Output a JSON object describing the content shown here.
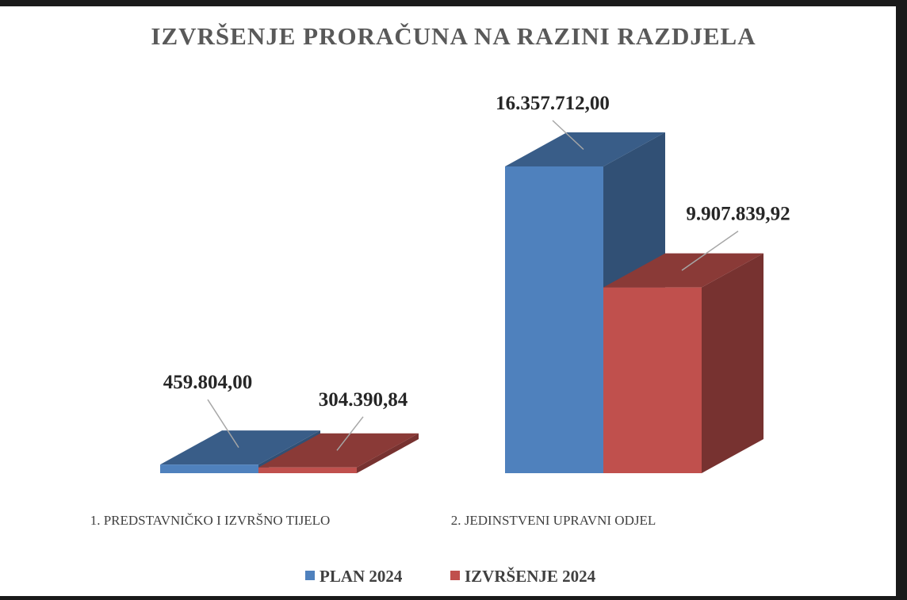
{
  "chart_data": {
    "type": "bar3d",
    "title": "IZVRŠENJE PRORAČUNA NA RAZINI RAZDJELA",
    "categories": [
      "1. PREDSTAVNIČKO I IZVRŠNO TIJELO",
      "2. JEDINSTVENI UPRAVNI ODJEL"
    ],
    "series": [
      {
        "name": "PLAN 2024",
        "color": "#4f81bd",
        "values": [
          459804.0,
          16357712.0
        ],
        "value_labels": [
          "459.804,00",
          "16.357.712,00"
        ]
      },
      {
        "name": "IZVRŠENJE 2024",
        "color": "#c0504d",
        "values": [
          304390.84,
          9907839.92
        ],
        "value_labels": [
          "304.390,84",
          "9.907.839,92"
        ]
      }
    ]
  }
}
